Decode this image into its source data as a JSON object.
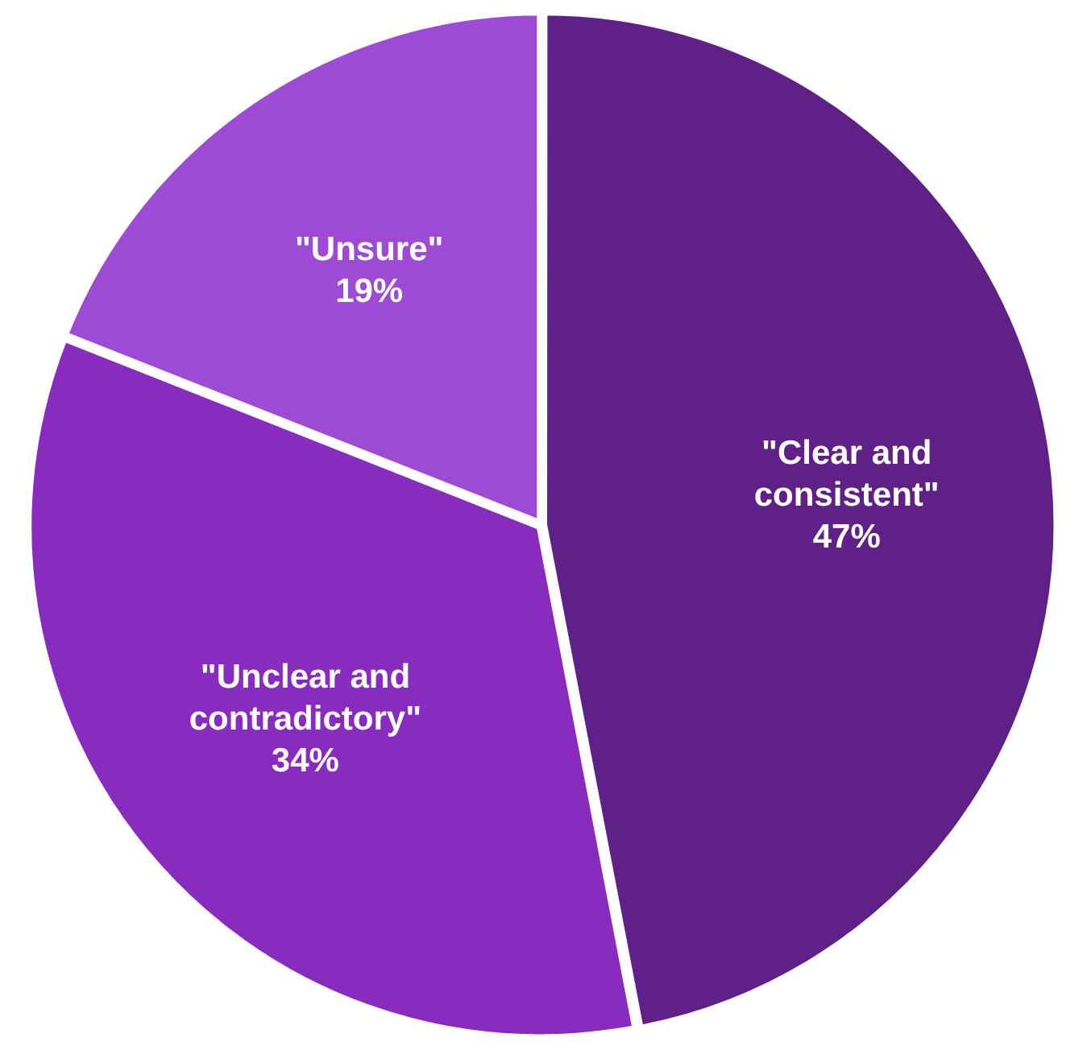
{
  "chart_data": {
    "type": "pie",
    "categories": [
      "\"Clear and consistent\"",
      "\"Unclear and contradictory\"",
      "\"Unsure\""
    ],
    "values": [
      47,
      34,
      19
    ],
    "colors": [
      "#5f2087",
      "#882bbf",
      "#9d4bd5"
    ],
    "value_labels": [
      "47%",
      "34%",
      "19%"
    ],
    "legend": false
  }
}
